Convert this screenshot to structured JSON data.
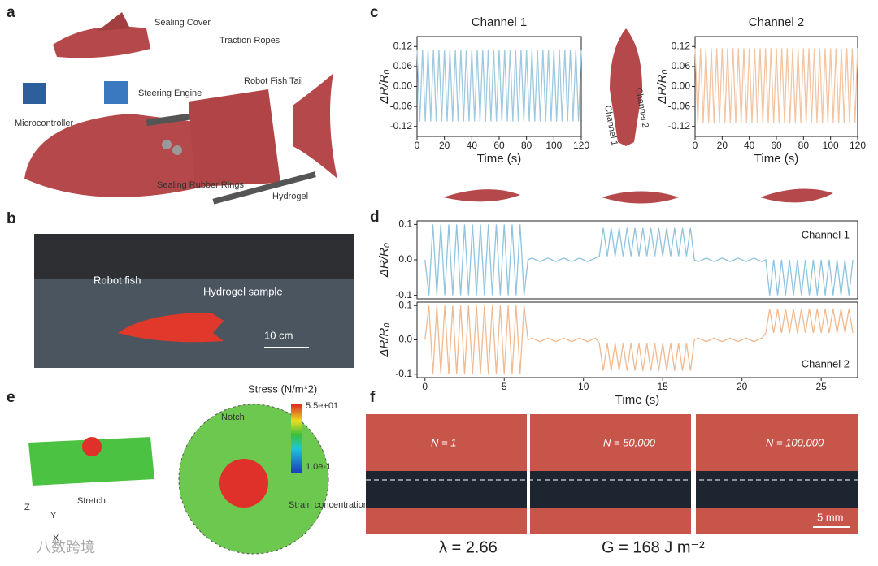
{
  "figure": {
    "panels": [
      "a",
      "b",
      "c",
      "d",
      "e",
      "f"
    ],
    "a": {
      "labels": [
        "Sealing Cover",
        "Traction Ropes",
        "Robot Fish Tail",
        "Steering Engine",
        "Microcontroller",
        "Sealing Rubber Rings",
        "Hydrogel"
      ]
    },
    "b": {
      "labels": [
        "Robot fish",
        "Hydrogel sample",
        "10 cm"
      ]
    },
    "c_inset": [
      "Channel 1",
      "Channel 2"
    ],
    "e": {
      "colorbar_title": "Stress (N/m*2)",
      "colorbar_max": "5.5e+01",
      "colorbar_min": "1.0e-1",
      "labels": [
        "Notch",
        "Stretch",
        "Strain concentration"
      ],
      "axes": [
        "Z",
        "Y",
        "X"
      ]
    },
    "f": {
      "labels": [
        "N = 1",
        "N = 50,000",
        "N = 100,000"
      ],
      "scale": "5 mm",
      "lambda": "λ = 2.66",
      "G": "G = 168 J m⁻²"
    },
    "watermark": "八数跨境"
  },
  "chart_data": [
    {
      "type": "line",
      "title": "Channel 1",
      "x_label": "Time (s)",
      "y_label": "ΔR/R₀",
      "color": "#9ec9df",
      "x": [
        0,
        2,
        4,
        6,
        8,
        10,
        12,
        14,
        16,
        18,
        20,
        22,
        24,
        26,
        28,
        30,
        32,
        34,
        36,
        38,
        40,
        42,
        44,
        46,
        48,
        50,
        52,
        54,
        56,
        58,
        60,
        62,
        64,
        66,
        68,
        70,
        72,
        74,
        76,
        78,
        80,
        82,
        84,
        86,
        88,
        90,
        92,
        94,
        96,
        98,
        100,
        102,
        104,
        106,
        108,
        110,
        112,
        114,
        116,
        118,
        120
      ],
      "values": [
        0.11,
        -0.105,
        0.11,
        -0.105,
        0.11,
        -0.105,
        0.11,
        -0.105,
        0.11,
        -0.105,
        0.11,
        -0.105,
        0.11,
        -0.105,
        0.11,
        -0.105,
        0.11,
        -0.105,
        0.11,
        -0.105,
        0.11,
        -0.105,
        0.11,
        -0.105,
        0.11,
        -0.105,
        0.11,
        -0.105,
        0.11,
        -0.105,
        0.11,
        -0.105,
        0.11,
        -0.105,
        0.11,
        -0.105,
        0.11,
        -0.105,
        0.11,
        -0.105,
        0.11,
        -0.105,
        0.11,
        -0.105,
        0.11,
        -0.105,
        0.11,
        -0.105,
        0.11,
        -0.105,
        0.11,
        -0.105,
        0.11,
        -0.105,
        0.11,
        -0.105,
        0.11,
        -0.105,
        0.11,
        -0.105,
        0.11
      ],
      "xlim": [
        0,
        120
      ],
      "xticks": [
        0,
        20,
        40,
        60,
        80,
        100,
        120
      ],
      "ylim": [
        -0.15,
        0.15
      ],
      "yticks": [
        0.12,
        0.06,
        {
          "value": 0,
          "label": "0.00"
        },
        -0.06,
        -0.12
      ]
    },
    {
      "type": "line",
      "title": "Channel 2",
      "x_label": "Time (s)",
      "y_label": "ΔR/R₀",
      "color": "#f2c4a2",
      "x": [
        0,
        2,
        4,
        6,
        8,
        10,
        12,
        14,
        16,
        18,
        20,
        22,
        24,
        26,
        28,
        30,
        32,
        34,
        36,
        38,
        40,
        42,
        44,
        46,
        48,
        50,
        52,
        54,
        56,
        58,
        60,
        62,
        64,
        66,
        68,
        70,
        72,
        74,
        76,
        78,
        80,
        82,
        84,
        86,
        88,
        90,
        92,
        94,
        96,
        98,
        100,
        102,
        104,
        106,
        108,
        110,
        112,
        114,
        116,
        118,
        120
      ],
      "values": [
        0.115,
        -0.11,
        0.115,
        -0.11,
        0.115,
        -0.11,
        0.115,
        -0.11,
        0.115,
        -0.11,
        0.115,
        -0.11,
        0.115,
        -0.11,
        0.115,
        -0.11,
        0.115,
        -0.11,
        0.115,
        -0.11,
        0.115,
        -0.11,
        0.115,
        -0.11,
        0.115,
        -0.11,
        0.115,
        -0.11,
        0.115,
        -0.11,
        0.115,
        -0.11,
        0.115,
        -0.11,
        0.115,
        -0.11,
        0.115,
        -0.11,
        0.115,
        -0.11,
        0.115,
        -0.11,
        0.115,
        -0.11,
        0.115,
        -0.11,
        0.115,
        -0.11,
        0.115,
        -0.11,
        0.115,
        -0.11,
        0.115,
        -0.11,
        0.115,
        -0.11,
        0.115,
        -0.11,
        0.115,
        -0.11,
        0.115
      ],
      "xlim": [
        0,
        120
      ],
      "xticks": [
        0,
        20,
        40,
        60,
        80,
        100,
        120
      ],
      "ylim": [
        -0.15,
        0.15
      ],
      "yticks": [
        0.12,
        0.06,
        {
          "value": 0,
          "label": "0.00"
        },
        -0.06,
        -0.12
      ]
    },
    {
      "type": "line",
      "x_label": "Time (s)",
      "y_label": "ΔR/R₀",
      "x": [
        0,
        0.25,
        0.5,
        0.75,
        1,
        1.25,
        1.5,
        1.75,
        2,
        2.25,
        2.5,
        2.75,
        3,
        3.25,
        3.5,
        3.75,
        4,
        4.25,
        4.5,
        4.75,
        5,
        5.25,
        5.5,
        5.75,
        6,
        6.25,
        6.5,
        6.75,
        7,
        7.25,
        7.5,
        7.75,
        8,
        8.25,
        8.5,
        8.75,
        9,
        9.25,
        9.5,
        9.75,
        10,
        10.25,
        10.5,
        10.75,
        11,
        11.25,
        11.5,
        11.75,
        12,
        12.25,
        12.5,
        12.75,
        13,
        13.25,
        13.5,
        13.75,
        14,
        14.25,
        14.5,
        14.75,
        15,
        15.25,
        15.5,
        15.75,
        16,
        16.25,
        16.5,
        16.75,
        17,
        17.25,
        17.5,
        17.75,
        18,
        18.25,
        18.5,
        18.75,
        19,
        19.25,
        19.5,
        19.75,
        20,
        20.25,
        20.5,
        20.75,
        21,
        21.25,
        21.5,
        21.75,
        22,
        22.25,
        22.5,
        22.75,
        23,
        23.25,
        23.5,
        23.75,
        24,
        24.25,
        24.5,
        24.75,
        25,
        25.25,
        25.5,
        25.75,
        26,
        26.25,
        26.5,
        26.75,
        27
      ],
      "series": [
        {
          "name": "Channel 1",
          "color": "#8fc3de",
          "values": [
            0,
            -0.1,
            0.1,
            -0.1,
            0.1,
            -0.1,
            0.1,
            -0.1,
            0.1,
            -0.1,
            0.1,
            -0.1,
            0.1,
            -0.1,
            0.1,
            -0.1,
            0.1,
            -0.1,
            0.1,
            -0.1,
            0.1,
            -0.1,
            0.1,
            -0.1,
            0.1,
            -0.1,
            0,
            0.005,
            0,
            -0.005,
            0,
            0.005,
            0,
            -0.005,
            0,
            0.005,
            0,
            -0.005,
            0,
            0.005,
            0,
            -0.005,
            0,
            0.005,
            0.01,
            0.09,
            0.01,
            0.09,
            0.01,
            0.09,
            0.01,
            0.09,
            0.01,
            0.09,
            0.01,
            0.09,
            0.01,
            0.09,
            0.01,
            0.09,
            0.01,
            0.09,
            0.01,
            0.09,
            0.01,
            0.09,
            0.01,
            0.09,
            0,
            -0.005,
            0,
            0.005,
            0,
            -0.005,
            0,
            0.005,
            0,
            -0.005,
            0,
            0.005,
            0,
            -0.005,
            0,
            0.005,
            0,
            -0.005,
            0,
            -0.1,
            0,
            -0.1,
            0,
            -0.1,
            0,
            -0.1,
            0,
            -0.1,
            0,
            -0.1,
            0,
            -0.1,
            0,
            -0.1,
            0,
            -0.1,
            0,
            -0.1,
            0,
            -0.1,
            0
          ]
        },
        {
          "name": "Channel 2",
          "color": "#f0b98f",
          "values": [
            0,
            0.1,
            -0.1,
            0.1,
            -0.1,
            0.1,
            -0.1,
            0.1,
            -0.1,
            0.1,
            -0.1,
            0.1,
            -0.1,
            0.1,
            -0.1,
            0.1,
            -0.1,
            0.1,
            -0.1,
            0.1,
            -0.1,
            0.1,
            -0.1,
            0.1,
            -0.1,
            0.1,
            0,
            0.005,
            0,
            -0.005,
            0,
            0.005,
            0,
            -0.005,
            0,
            0.005,
            0,
            -0.005,
            0,
            0.005,
            0,
            -0.005,
            0,
            0.005,
            -0.01,
            -0.09,
            -0.01,
            -0.09,
            -0.01,
            -0.09,
            -0.01,
            -0.09,
            -0.01,
            -0.09,
            -0.01,
            -0.09,
            -0.01,
            -0.09,
            -0.01,
            -0.09,
            -0.01,
            -0.09,
            -0.01,
            -0.09,
            -0.01,
            -0.09,
            -0.01,
            -0.09,
            0,
            0.005,
            0,
            -0.005,
            0,
            0.005,
            0,
            -0.005,
            0,
            0.005,
            0,
            -0.005,
            0,
            0.005,
            0,
            -0.005,
            0,
            0.005,
            0.02,
            0.09,
            0.02,
            0.09,
            0.02,
            0.09,
            0.02,
            0.09,
            0.02,
            0.09,
            0.02,
            0.09,
            0.02,
            0.09,
            0.02,
            0.09,
            0.02,
            0.09,
            0.02,
            0.09,
            0.02,
            0.09,
            0.02
          ]
        }
      ],
      "xlim": [
        -0.5,
        27.3
      ],
      "xticks": [
        0,
        5,
        10,
        15,
        20,
        25
      ],
      "ylim": [
        -0.11,
        0.11
      ],
      "yticks": [
        0.1,
        {
          "value": 0,
          "label": "0.0"
        },
        -0.1
      ]
    }
  ]
}
